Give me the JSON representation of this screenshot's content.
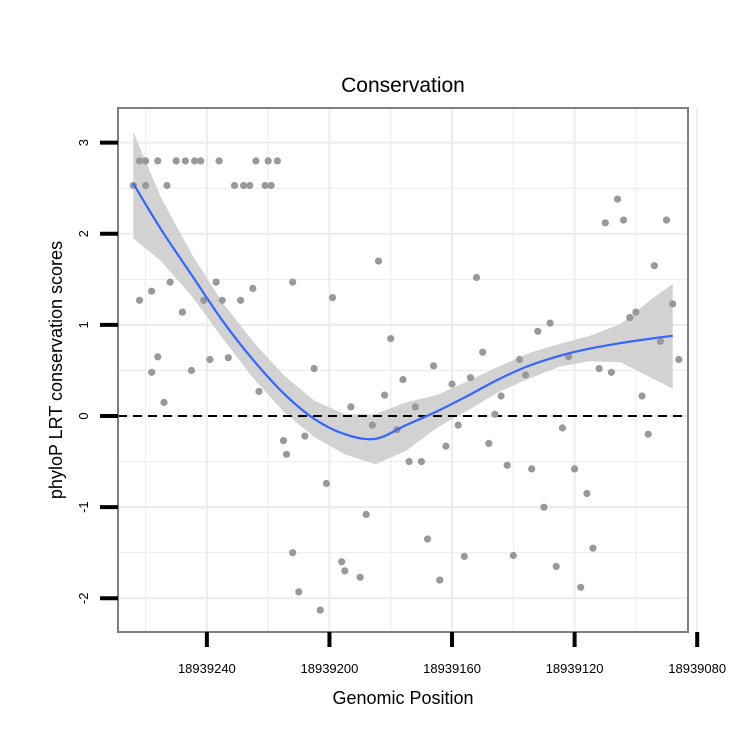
{
  "chart_data": {
    "type": "scatter",
    "title": "Conservation",
    "xlabel": "Genomic Position",
    "ylabel": "phyloP LRT conservation scores",
    "x_reversed": true,
    "xlim": [
      18939269,
      18939083
    ],
    "ylim": [
      -2.37,
      3.38
    ],
    "x_ticks": [
      18939240,
      18939200,
      18939160,
      18939120,
      18939080
    ],
    "y_ticks": [
      -2,
      -1,
      0,
      1,
      2,
      3
    ],
    "reference_line": {
      "y": 0,
      "style": "dashed"
    },
    "grid": true,
    "colors": {
      "points": "#999999",
      "smooth": "#3366ff",
      "band": "#d0d0d0",
      "panel_border": "#808080",
      "grid": "#ececec"
    },
    "series": [
      {
        "type": "scatter",
        "x": [
          18939264,
          18939262,
          18939262,
          18939260,
          18939260,
          18939258,
          18939258,
          18939256,
          18939256,
          18939254,
          18939253,
          18939252,
          18939250,
          18939248,
          18939247,
          18939245,
          18939244,
          18939242,
          18939241,
          18939239,
          18939237,
          18939236,
          18939235,
          18939233,
          18939231,
          18939229,
          18939228,
          18939226,
          18939225,
          18939224,
          18939223,
          18939221,
          18939220,
          18939219,
          18939217,
          18939215,
          18939214,
          18939212,
          18939212,
          18939210,
          18939208,
          18939205,
          18939203,
          18939201,
          18939199,
          18939196,
          18939195,
          18939193,
          18939190,
          18939188,
          18939186,
          18939184,
          18939182,
          18939180,
          18939178,
          18939176,
          18939174,
          18939172,
          18939170,
          18939168,
          18939166,
          18939164,
          18939162,
          18939160,
          18939158,
          18939156,
          18939154,
          18939152,
          18939150,
          18939148,
          18939146,
          18939144,
          18939142,
          18939140,
          18939138,
          18939136,
          18939134,
          18939132,
          18939130,
          18939128,
          18939126,
          18939124,
          18939122,
          18939120,
          18939118,
          18939116,
          18939114,
          18939112,
          18939110,
          18939108,
          18939106,
          18939104,
          18939102,
          18939100,
          18939098,
          18939096,
          18939094,
          18939092,
          18939090,
          18939088,
          18939086
        ],
        "y": [
          2.53,
          1.27,
          2.8,
          2.8,
          2.53,
          0.48,
          1.37,
          2.8,
          0.65,
          0.15,
          2.53,
          1.47,
          2.8,
          1.14,
          2.8,
          0.5,
          2.8,
          2.8,
          1.27,
          0.62,
          1.47,
          2.8,
          1.27,
          0.64,
          2.53,
          1.27,
          2.53,
          2.53,
          1.4,
          2.8,
          0.27,
          2.53,
          2.8,
          2.53,
          2.8,
          -0.27,
          -0.42,
          1.47,
          -1.5,
          -1.93,
          -0.22,
          0.52,
          -2.13,
          -0.74,
          1.3,
          -1.6,
          -1.7,
          0.1,
          -1.77,
          -1.08,
          -0.1,
          1.7,
          0.23,
          0.85,
          -0.15,
          0.4,
          -0.5,
          0.1,
          -0.5,
          -1.35,
          0.55,
          -1.8,
          -0.33,
          0.35,
          -0.1,
          -1.54,
          0.42,
          1.52,
          0.7,
          -0.3,
          0.02,
          0.22,
          -0.54,
          -1.53,
          0.62,
          0.45,
          -0.58,
          0.93,
          -1.0,
          1.02,
          -1.65,
          -0.13,
          0.65,
          -0.58,
          -1.88,
          -0.85,
          -1.45,
          0.52,
          2.12,
          0.48,
          2.38,
          2.15,
          1.08,
          1.14,
          0.22,
          -0.2,
          1.65,
          0.82,
          2.15,
          1.23,
          0.62
        ],
        "color": "#999999"
      },
      {
        "type": "smooth",
        "x": [
          18939264,
          18939255,
          18939245,
          18939235,
          18939225,
          18939215,
          18939205,
          18939195,
          18939185,
          18939175,
          18939165,
          18939155,
          18939145,
          18939135,
          18939125,
          18939115,
          18939105,
          18939095,
          18939088
        ],
        "y": [
          2.55,
          2.05,
          1.55,
          1.05,
          0.62,
          0.25,
          -0.03,
          -0.2,
          -0.25,
          -0.1,
          0.05,
          0.22,
          0.4,
          0.55,
          0.66,
          0.74,
          0.8,
          0.85,
          0.88
        ],
        "lower": [
          1.95,
          1.7,
          1.32,
          0.86,
          0.42,
          0.05,
          -0.23,
          -0.42,
          -0.53,
          -0.38,
          -0.13,
          0.06,
          0.26,
          0.41,
          0.54,
          0.6,
          0.59,
          0.42,
          0.3
        ],
        "upper": [
          3.12,
          2.4,
          1.78,
          1.25,
          0.82,
          0.45,
          0.17,
          0.02,
          0.02,
          0.15,
          0.23,
          0.38,
          0.54,
          0.69,
          0.79,
          0.88,
          1.01,
          1.28,
          1.45
        ],
        "color": "#3366ff"
      }
    ]
  }
}
